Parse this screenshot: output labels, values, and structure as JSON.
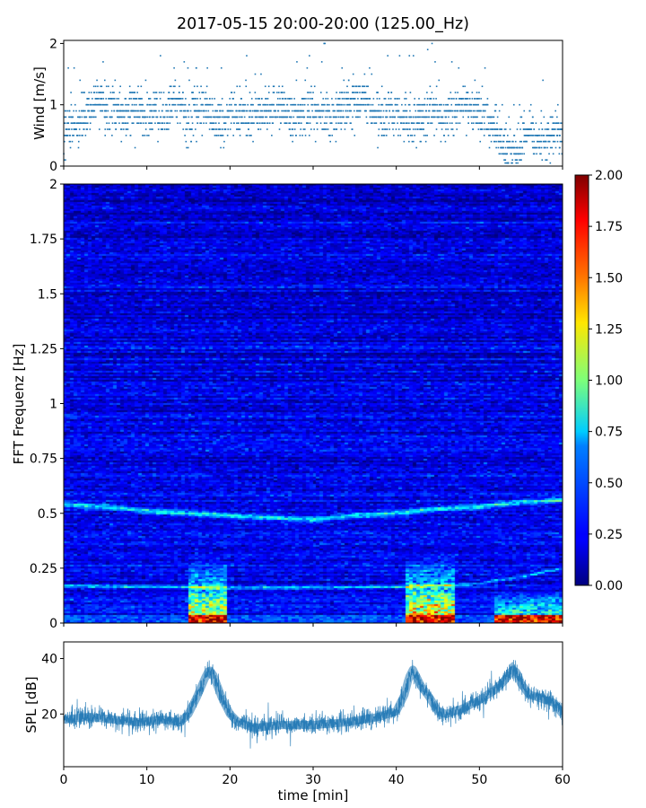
{
  "figure": {
    "title": "2017-05-15 20:00-20:00 (125.00_Hz)"
  },
  "chart_data": [
    {
      "type": "scatter",
      "panel": "wind",
      "xlabel": "",
      "ylabel": "Wind [m/s]",
      "xlim": [
        0,
        60
      ],
      "ylim": [
        0,
        2.05
      ],
      "xticks": [
        "0",
        "10",
        "20",
        "30",
        "40",
        "50",
        "60"
      ],
      "yticks": [
        "0",
        "1",
        "2"
      ],
      "ytick_values": [
        0,
        1,
        2
      ],
      "x_tick_values": [
        0,
        10,
        20,
        30,
        40,
        50,
        60
      ],
      "color": "#1f77b4",
      "trend_x": [
        0,
        2,
        3,
        4,
        5,
        6,
        7,
        8,
        9,
        10,
        11,
        12,
        13,
        14,
        15,
        16,
        17,
        18,
        19,
        20,
        22,
        24,
        26,
        28,
        30,
        32,
        34,
        36,
        38,
        40,
        42,
        44,
        46,
        48,
        50,
        51,
        52,
        53,
        54,
        55,
        56,
        57,
        58,
        59,
        60
      ],
      "trend_y": [
        0.6,
        0.7,
        0.9,
        1.1,
        0.9,
        1.0,
        0.8,
        0.9,
        1.0,
        0.8,
        0.9,
        0.8,
        1.0,
        1.1,
        0.7,
        0.9,
        1.0,
        0.8,
        0.7,
        0.9,
        0.8,
        0.9,
        1.0,
        0.8,
        0.9,
        0.8,
        1.0,
        1.1,
        0.8,
        0.9,
        0.7,
        0.9,
        0.8,
        1.0,
        0.9,
        0.8,
        0.6,
        0.3,
        0.25,
        0.4,
        0.6,
        0.5,
        0.4,
        0.6,
        0.5
      ],
      "sample_interval_min": 0.1
    },
    {
      "type": "heatmap",
      "panel": "spectrogram",
      "xlabel": "",
      "ylabel": "FFT Frequenz [Hz]",
      "xlim": [
        0,
        60
      ],
      "ylim": [
        0,
        2
      ],
      "yticks": [
        "0",
        "0.25",
        "0.5",
        "0.75",
        "1",
        "1.25",
        "1.5",
        "1.75",
        "2"
      ],
      "ytick_values": [
        0,
        0.25,
        0.5,
        0.75,
        1,
        1.25,
        1.5,
        1.75,
        2
      ],
      "x_tick_values": [
        0,
        10,
        20,
        30,
        40,
        50,
        60
      ],
      "colormap": "jet",
      "clim": [
        0,
        2
      ],
      "colorbar_ticks": [
        "0.00",
        "0.25",
        "0.50",
        "0.75",
        "1.00",
        "1.25",
        "1.50",
        "1.75",
        "2.00"
      ],
      "colorbar_tick_values": [
        0,
        0.25,
        0.5,
        0.75,
        1,
        1.25,
        1.5,
        1.75,
        2
      ],
      "background_level": 0.2,
      "band_upper": {
        "x": [
          0,
          5,
          10,
          15,
          20,
          25,
          30,
          35,
          40,
          45,
          50,
          55,
          60
        ],
        "freq": [
          0.54,
          0.53,
          0.51,
          0.5,
          0.49,
          0.48,
          0.47,
          0.49,
          0.5,
          0.52,
          0.53,
          0.55,
          0.56
        ],
        "level": 0.65
      },
      "band_lower": {
        "x": [
          0,
          10,
          20,
          30,
          40,
          45,
          50,
          55,
          60
        ],
        "freq": [
          0.17,
          0.165,
          0.16,
          0.16,
          0.165,
          0.17,
          0.18,
          0.21,
          0.25
        ],
        "level": 0.55
      },
      "hot_spots": [
        {
          "x_range": [
            15,
            19.5
          ],
          "freq_max": 0.3,
          "level": 1.2
        },
        {
          "x_range": [
            41,
            47
          ],
          "freq_max": 0.3,
          "level": 1.4
        },
        {
          "x_range": [
            52,
            60
          ],
          "freq_max": 0.15,
          "level": 0.9
        }
      ],
      "low_freq_peak_level": 2.0
    },
    {
      "type": "line",
      "panel": "spl",
      "xlabel": "time [min]",
      "ylabel": "SPL [dB]",
      "xlim": [
        0,
        60
      ],
      "ylim": [
        1,
        46
      ],
      "xticks": [
        "0",
        "10",
        "20",
        "30",
        "40",
        "50",
        "60"
      ],
      "x_tick_values": [
        0,
        10,
        20,
        30,
        40,
        50,
        60
      ],
      "yticks": [
        "20",
        "40"
      ],
      "ytick_values": [
        20,
        40
      ],
      "color": "#1f77b4",
      "x": [
        0,
        3,
        6,
        9,
        12,
        14,
        15,
        16,
        17,
        17.5,
        18,
        18.5,
        19,
        20,
        21,
        23,
        26,
        30,
        34,
        38,
        40,
        41,
        41.5,
        42,
        42.5,
        43,
        44,
        45,
        46,
        48,
        50,
        52,
        53,
        54,
        54.5,
        55,
        56,
        57,
        58,
        59,
        60
      ],
      "y": [
        18,
        19,
        18,
        17,
        18,
        17,
        20,
        26,
        33,
        36,
        34,
        30,
        26,
        20,
        17,
        15,
        16,
        16,
        17,
        19,
        21,
        27,
        33,
        36,
        33,
        30,
        26,
        21,
        20,
        22,
        25,
        29,
        32,
        36,
        35,
        31,
        27,
        26,
        25,
        24,
        20
      ],
      "noise_amplitude_db": 3.5
    }
  ]
}
